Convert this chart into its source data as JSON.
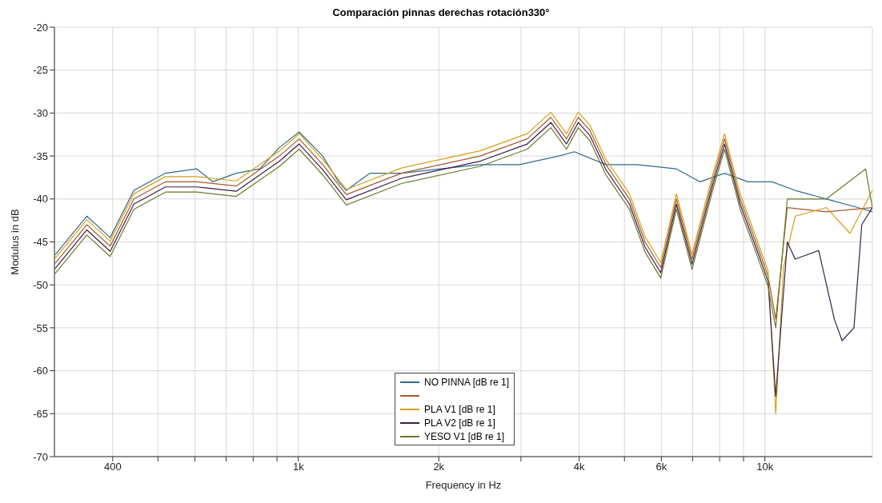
{
  "chart_data": {
    "type": "line",
    "title": "Comparación pinnas derechas rotación330°",
    "xlabel": "Frequency in Hz",
    "ylabel": "Modulus in dB",
    "log": "x",
    "grid": true,
    "legend": "bottom",
    "xlim": [
      300,
      17000
    ],
    "ylim": [
      -70,
      -20
    ],
    "xticks": [
      {
        "value": 400,
        "label": "400"
      },
      {
        "value": 500,
        "label": null
      },
      {
        "value": 600,
        "label": null
      },
      {
        "value": 700,
        "label": null
      },
      {
        "value": 800,
        "label": null
      },
      {
        "value": 900,
        "label": null
      },
      {
        "value": 1000,
        "label": "1k"
      },
      {
        "value": 2000,
        "label": "2k"
      },
      {
        "value": 3000,
        "label": null
      },
      {
        "value": 4000,
        "label": "4k"
      },
      {
        "value": 5000,
        "label": null
      },
      {
        "value": 6000,
        "label": "6k"
      },
      {
        "value": 7000,
        "label": null
      },
      {
        "value": 8000,
        "label": null
      },
      {
        "value": 9000,
        "label": null
      },
      {
        "value": 10000,
        "label": "10k"
      }
    ],
    "yticks": [
      -70,
      -65,
      -60,
      -55,
      -50,
      -45,
      -40,
      -35,
      -30,
      -25,
      -20
    ],
    "series": [
      {
        "name": "NO PINNA [dB re 1]",
        "color": "#2f6b8f",
        "x": [
          301,
          352,
          395,
          444,
          519,
          606,
          655,
          736,
          827,
          911,
          1004,
          1128,
          1219,
          1267,
          1424,
          1663,
          2019,
          2452,
          2978,
          3614,
          3904,
          4564,
          5326,
          6461,
          7255,
          8194,
          9200,
          10360,
          11610,
          13550,
          15820,
          17000
        ],
        "values": [
          -46.5,
          -42,
          -44.5,
          -39,
          -37,
          -36.5,
          -38,
          -37,
          -36.5,
          -34,
          -32.2,
          -35,
          -38,
          -39,
          -37,
          -37,
          -36.5,
          -36,
          -36,
          -35,
          -34.5,
          -36,
          -36,
          -36.5,
          -38,
          -37,
          -38,
          -38,
          -39,
          -40,
          -41,
          -41.5
        ]
      },
      {
        "color": "#a65a2a",
        "x": [
          301,
          352,
          395,
          444,
          519,
          606,
          736,
          911,
          1004,
          1128,
          1267,
          1663,
          2452,
          3095,
          3477,
          3756,
          3980,
          4215,
          4564,
          5125,
          5536,
          5981,
          6461,
          6980,
          7710,
          8194,
          8851,
          9563,
          10160,
          10550,
          11170,
          13550,
          17000
        ],
        "values": [
          -47.5,
          -43,
          -45.5,
          -40,
          -38,
          -38,
          -38.5,
          -35,
          -33,
          -36,
          -39.5,
          -37,
          -35,
          -33,
          -30.5,
          -33,
          -30.5,
          -32,
          -36,
          -40,
          -45,
          -48,
          -40,
          -47,
          -38,
          -33,
          -40,
          -45,
          -49,
          -54,
          -41,
          -41.5,
          -41
        ]
      },
      {
        "name": "PLA V1 [dB re 1]",
        "color": "#d4a017",
        "x": [
          301,
          352,
          395,
          444,
          519,
          606,
          736,
          911,
          1004,
          1128,
          1267,
          1663,
          2452,
          3095,
          3477,
          3756,
          3980,
          4215,
          4564,
          5125,
          5536,
          5981,
          6461,
          6980,
          7710,
          8194,
          8851,
          9563,
          10160,
          10550,
          10960,
          11610,
          13550,
          15220,
          17000
        ],
        "values": [
          -46.9,
          -42.4,
          -44.9,
          -39.4,
          -37.4,
          -37.4,
          -37.9,
          -34.4,
          -32.4,
          -35.4,
          -38.9,
          -36.4,
          -34.4,
          -32.4,
          -29.9,
          -32.4,
          -29.9,
          -31.4,
          -35.4,
          -39.4,
          -44.4,
          -47.4,
          -39.4,
          -46.4,
          -37.4,
          -32.4,
          -39.4,
          -44.4,
          -48.4,
          -65,
          -48,
          -42,
          -41,
          -44,
          -39
        ]
      },
      {
        "name": "PLA V2 [dB re 1]",
        "color": "#3a1f4a",
        "x": [
          301,
          352,
          395,
          444,
          519,
          606,
          736,
          911,
          1004,
          1128,
          1267,
          1663,
          2452,
          3095,
          3477,
          3756,
          3980,
          4215,
          4564,
          5125,
          5536,
          5981,
          6461,
          6980,
          7710,
          8194,
          8851,
          9563,
          10160,
          10550,
          11170,
          11610,
          13040,
          14090,
          14640,
          15520,
          16130,
          17000
        ],
        "values": [
          -48.1,
          -43.6,
          -46.1,
          -40.6,
          -38.6,
          -38.6,
          -39.1,
          -35.6,
          -33.6,
          -36.6,
          -40.1,
          -37.6,
          -35.6,
          -33.6,
          -31.1,
          -33.6,
          -31.1,
          -32.6,
          -36.6,
          -40.6,
          -45.6,
          -48.6,
          -40.6,
          -47.6,
          -38.6,
          -33.6,
          -40.6,
          -45.6,
          -49.6,
          -63,
          -45,
          -47,
          -46,
          -54,
          -56.5,
          -55,
          -43,
          -41
        ]
      },
      {
        "name": "YESO V1 [dB re 1]",
        "color": "#6b7a2a",
        "x": [
          301,
          352,
          395,
          444,
          519,
          606,
          736,
          911,
          1004,
          1128,
          1267,
          1663,
          2452,
          3095,
          3477,
          3756,
          3980,
          4215,
          4564,
          5125,
          5536,
          5981,
          6461,
          6980,
          7710,
          8194,
          8851,
          9563,
          10160,
          10550,
          11170,
          13550,
          16440,
          17000
        ],
        "values": [
          -48.7,
          -44.2,
          -46.7,
          -41.2,
          -39.2,
          -39.2,
          -39.7,
          -36.2,
          -34.2,
          -37.2,
          -40.7,
          -38.2,
          -36.2,
          -34.2,
          -31.7,
          -34.2,
          -31.7,
          -33.2,
          -37.2,
          -41.2,
          -46.2,
          -49.2,
          -41.2,
          -48.2,
          -39.2,
          -34.2,
          -41.2,
          -46.2,
          -50.2,
          -55,
          -40,
          -40,
          -36.5,
          -41
        ]
      }
    ]
  }
}
